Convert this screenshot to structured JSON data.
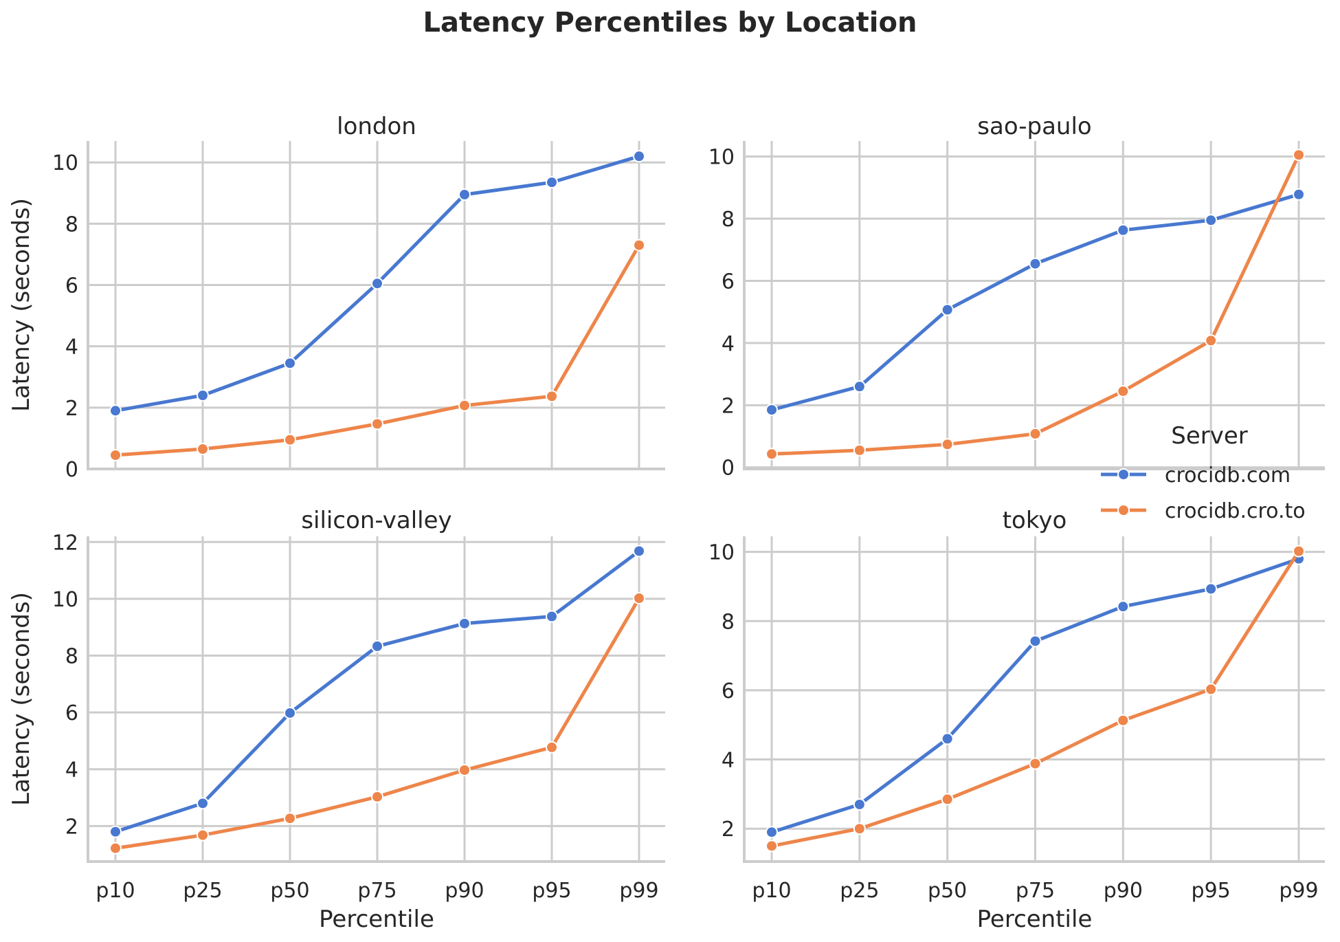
{
  "chart_data": {
    "type": "line",
    "title": "Latency Percentiles by Location",
    "xlabel": "Percentile",
    "ylabel": "Latency (seconds)",
    "categories": [
      "p10",
      "p25",
      "p50",
      "p75",
      "p90",
      "p95",
      "p99"
    ],
    "legend": {
      "title": "Server",
      "placement": "right",
      "entries": [
        {
          "name": "crocidb.com",
          "color": "#4878d0"
        },
        {
          "name": "crocidb.cro.to",
          "color": "#ee854a"
        }
      ]
    },
    "grid": true,
    "panels": [
      {
        "title": "london",
        "ylim": [
          0,
          10.7
        ],
        "yticks": [
          0,
          2,
          4,
          6,
          8,
          10
        ],
        "series": [
          {
            "name": "crocidb.com",
            "values": [
              1.9,
              2.4,
              3.45,
              6.05,
              8.95,
              9.35,
              10.2
            ]
          },
          {
            "name": "crocidb.cro.to",
            "values": [
              0.45,
              0.65,
              0.95,
              1.47,
              2.07,
              2.37,
              7.3
            ]
          }
        ]
      },
      {
        "title": "sao-paulo",
        "ylim": [
          -0.05,
          10.5
        ],
        "yticks": [
          0,
          2,
          4,
          6,
          8,
          10
        ],
        "series": [
          {
            "name": "crocidb.com",
            "values": [
              1.85,
              2.6,
              5.07,
              6.55,
              7.63,
              7.95,
              8.78
            ]
          },
          {
            "name": "crocidb.cro.to",
            "values": [
              0.43,
              0.55,
              0.74,
              1.08,
              2.45,
              4.08,
              10.05
            ]
          }
        ]
      },
      {
        "title": "silicon-valley",
        "ylim": [
          0.75,
          12.2
        ],
        "yticks": [
          2,
          4,
          6,
          8,
          10,
          12
        ],
        "series": [
          {
            "name": "crocidb.com",
            "values": [
              1.8,
              2.8,
              5.98,
              8.33,
              9.13,
              9.38,
              11.68
            ]
          },
          {
            "name": "crocidb.cro.to",
            "values": [
              1.22,
              1.68,
              2.27,
              3.03,
              3.97,
              4.77,
              10.02
            ]
          }
        ]
      },
      {
        "title": "tokyo",
        "ylim": [
          1.05,
          10.45
        ],
        "yticks": [
          2,
          4,
          6,
          8,
          10
        ],
        "series": [
          {
            "name": "crocidb.com",
            "values": [
              1.9,
              2.7,
              4.6,
              7.42,
              8.42,
              8.93,
              9.8
            ]
          },
          {
            "name": "crocidb.cro.to",
            "values": [
              1.5,
              2.0,
              2.85,
              3.88,
              5.13,
              6.03,
              10.02
            ]
          }
        ]
      }
    ]
  }
}
